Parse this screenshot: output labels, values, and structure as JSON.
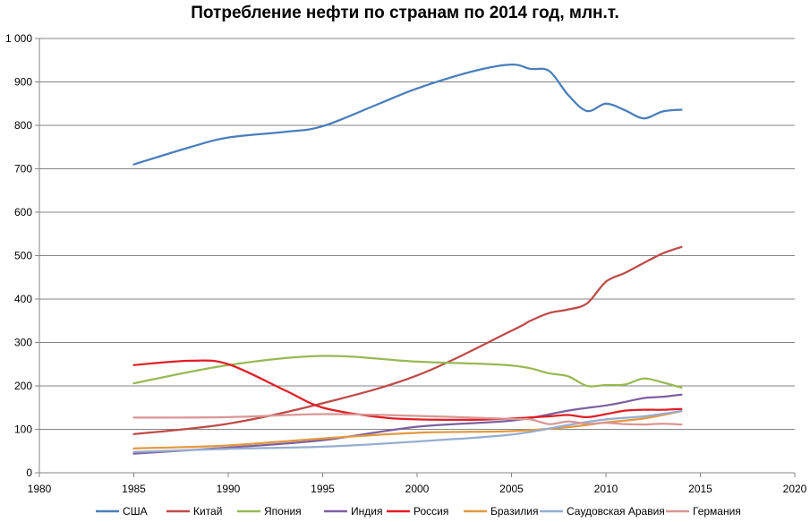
{
  "chart_data": {
    "type": "line",
    "title": "Потребление нефти по странам по 2014 год, млн.т.",
    "xlabel": "",
    "ylabel": "",
    "xlim": [
      1980,
      2020
    ],
    "ylim": [
      0,
      1000
    ],
    "x_ticks": [
      1980,
      1985,
      1990,
      1995,
      2000,
      2005,
      2010,
      2015,
      2020
    ],
    "y_ticks": [
      0,
      100,
      200,
      300,
      400,
      500,
      600,
      700,
      800,
      900,
      1000
    ],
    "y_tick_labels": [
      "0",
      "100",
      "200",
      "300",
      "400",
      "500",
      "600",
      "700",
      "800",
      "900",
      "1 000"
    ],
    "grid": "horizontal",
    "legend_position": "bottom",
    "series": [
      {
        "name": "США",
        "color": "#4A7EBB",
        "x": [
          1985,
          1988,
          1990,
          1993,
          1995,
          1998,
          2000,
          2003,
          2005,
          2006,
          2007,
          2008,
          2009,
          2010,
          2011,
          2012,
          2013,
          2014
        ],
        "y": [
          710,
          750,
          772,
          785,
          798,
          850,
          885,
          925,
          940,
          930,
          925,
          870,
          833,
          850,
          835,
          816,
          832,
          836
        ]
      },
      {
        "name": "Китай",
        "color": "#BE4B48",
        "x": [
          1985,
          1990,
          1995,
          2000,
          2005,
          2006,
          2007,
          2008,
          2009,
          2010,
          2011,
          2012,
          2013,
          2014
        ],
        "y": [
          89,
          113,
          160,
          224,
          327,
          350,
          368,
          376,
          390,
          440,
          460,
          483,
          505,
          520
        ]
      },
      {
        "name": "Япония",
        "color": "#98B954",
        "x": [
          1985,
          1990,
          1995,
          2000,
          2005,
          2007,
          2008,
          2009,
          2010,
          2011,
          2012,
          2013,
          2014
        ],
        "y": [
          206,
          248,
          269,
          256,
          247,
          229,
          222,
          200,
          202,
          203,
          217,
          208,
          196
        ]
      },
      {
        "name": "Индия",
        "color": "#7D60A0",
        "x": [
          1985,
          1990,
          1995,
          2000,
          2005,
          2008,
          2010,
          2011,
          2012,
          2013,
          2014
        ],
        "y": [
          44,
          58,
          75,
          106,
          120,
          143,
          155,
          163,
          172,
          175,
          180
        ]
      },
      {
        "name": "Россия",
        "color": "#E01E26",
        "x": [
          1985,
          1988,
          1990,
          1993,
          1995,
          1998,
          2000,
          2003,
          2005,
          2007,
          2008,
          2009,
          2010,
          2011,
          2012,
          2013,
          2014
        ],
        "y": [
          248,
          258,
          250,
          190,
          150,
          128,
          123,
          122,
          125,
          130,
          133,
          128,
          135,
          143,
          145,
          145,
          147
        ]
      },
      {
        "name": "Бразилия",
        "color": "#E39940",
        "x": [
          1985,
          1990,
          1995,
          2000,
          2005,
          2008,
          2010,
          2012,
          2014
        ],
        "y": [
          56,
          63,
          79,
          92,
          96,
          105,
          116,
          125,
          142
        ]
      },
      {
        "name": "Саудовская Аравия",
        "color": "#96ADD1",
        "x": [
          1985,
          1990,
          1995,
          2000,
          2005,
          2008,
          2010,
          2012,
          2014
        ],
        "y": [
          48,
          55,
          60,
          72,
          88,
          110,
          123,
          130,
          142
        ]
      },
      {
        "name": "Германия",
        "color": "#D99694",
        "x": [
          1985,
          1990,
          1995,
          2000,
          2005,
          2006,
          2007,
          2008,
          2009,
          2010,
          2011,
          2012,
          2013,
          2014
        ],
        "y": [
          127,
          128,
          135,
          131,
          124,
          123,
          112,
          118,
          113,
          115,
          112,
          111,
          113,
          111
        ]
      }
    ]
  }
}
